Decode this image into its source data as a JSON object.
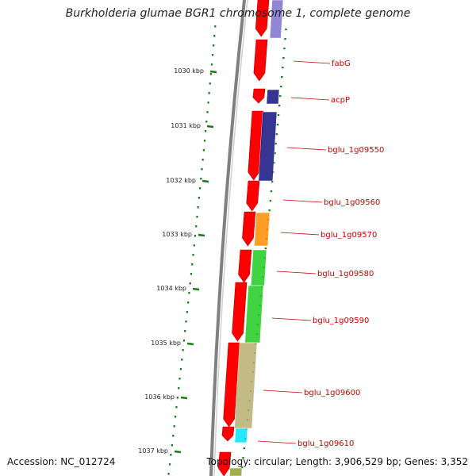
{
  "title": "Burkholderia glumae BGR1 chromosome 1, complete genome",
  "accession_text": "Accession: NC_012724",
  "summary_text": "Topology: circular; Length: 3,906,529 bp; Genes: 3,352",
  "ticks": [
    "1030 kbp",
    "1031 kbp",
    "1032 kbp",
    "1033 kbp",
    "1034 kbp",
    "1035 kbp",
    "1036 kbp",
    "1037 kbp"
  ],
  "genes": [
    "fabG",
    "acpP",
    "bglu_1g09550",
    "bglu_1g09560",
    "bglu_1g09570",
    "bglu_1g09580",
    "bglu_1g09590",
    "bglu_1g09600",
    "bglu_1g09610"
  ],
  "colors": {
    "cds": "#ff0000",
    "gene_label": "#cc0000",
    "tick": "#1a7a1a",
    "backbone": "#808080",
    "cog": [
      "#8070d0",
      "#141480",
      "#141480",
      "#ff8c00",
      "#22cc22",
      "#22cc22",
      "#b8b070",
      "#00e5ff",
      "#90a030"
    ]
  }
}
